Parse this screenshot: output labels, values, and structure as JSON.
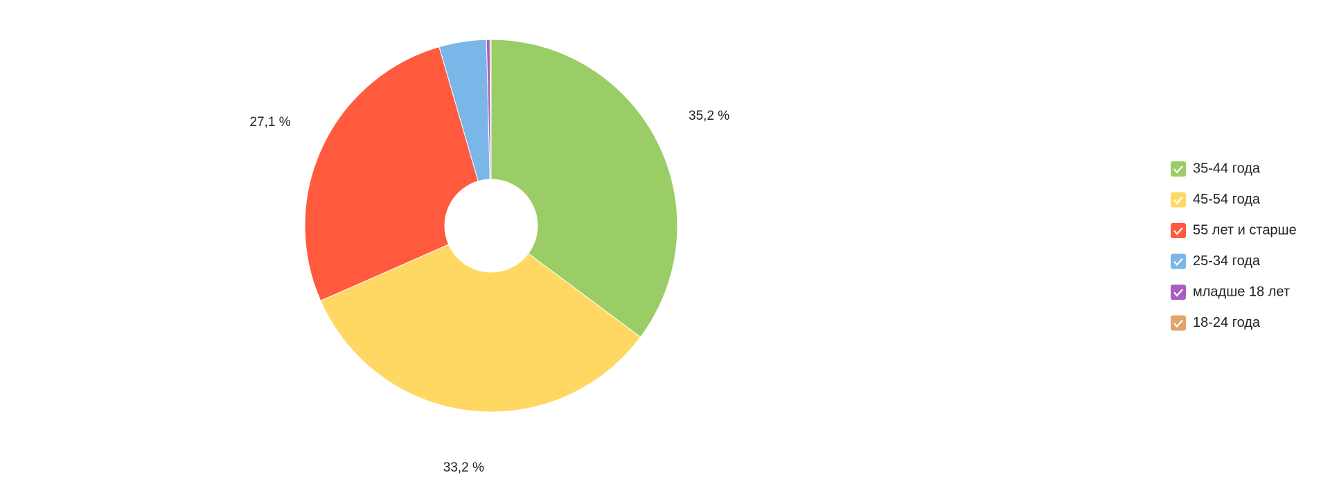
{
  "chart_data": {
    "type": "donut",
    "categories": [
      "35-44 года",
      "45-54 года",
      "55 лет и старше",
      "25-34 года",
      "младше 18 лет",
      "18-24 года"
    ],
    "values": [
      35.2,
      33.2,
      27.1,
      4.1,
      0.3,
      0.1
    ],
    "value_labels": [
      "35,2 %",
      "33,2 %",
      "27,1 %",
      null,
      null,
      null
    ],
    "colors": [
      "#9acd65",
      "#ffd864",
      "#ff5a3e",
      "#7ab6e8",
      "#a95ec1",
      "#e0a36a"
    ],
    "legend": "right"
  }
}
